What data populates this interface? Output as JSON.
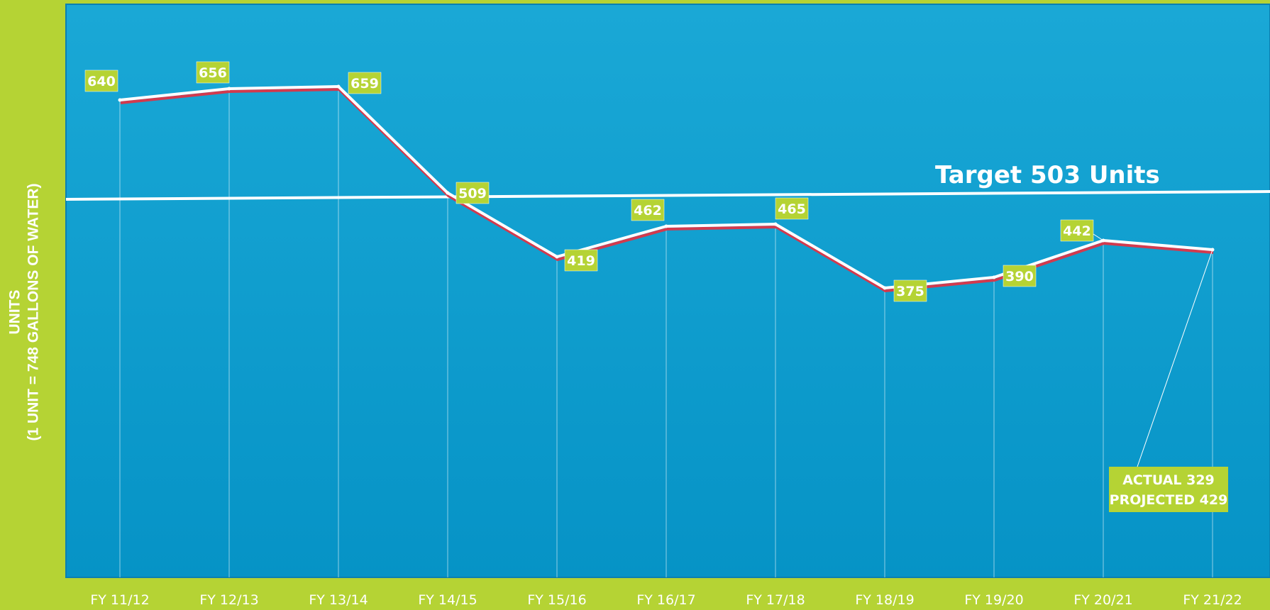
{
  "chart_data": {
    "type": "line",
    "ylabel_line1": "UNITS",
    "ylabel_line2": "(1 UNIT = 748 GALLONS OF WATER)",
    "categories": [
      "FY 11/12",
      "FY 12/13",
      "FY 13/14",
      "FY 14/15",
      "FY 15/16",
      "FY 16/17",
      "FY 17/18",
      "FY 18/19",
      "FY 19/20",
      "FY 20/21",
      "FY 21/22"
    ],
    "series": [
      {
        "values": [
          640,
          656,
          659,
          509,
          419,
          462,
          465,
          375,
          390,
          442,
          429
        ]
      }
    ],
    "data_labels": [
      "640",
      "656",
      "659",
      "509",
      "419",
      "462",
      "465",
      "375",
      "390",
      "442",
      "ACTUAL 329\nPROJECTED 429"
    ],
    "target": {
      "value": 503,
      "label": "Target 503 Units"
    },
    "ylim": [
      329,
      700
    ],
    "grid": false,
    "colors": {
      "background": "#b5d334",
      "plot_area": "#0a9fd3",
      "line": "#ffffff",
      "line_shadow": "#d23a4e",
      "label_box": "#b5d334",
      "text": "#ffffff"
    }
  }
}
